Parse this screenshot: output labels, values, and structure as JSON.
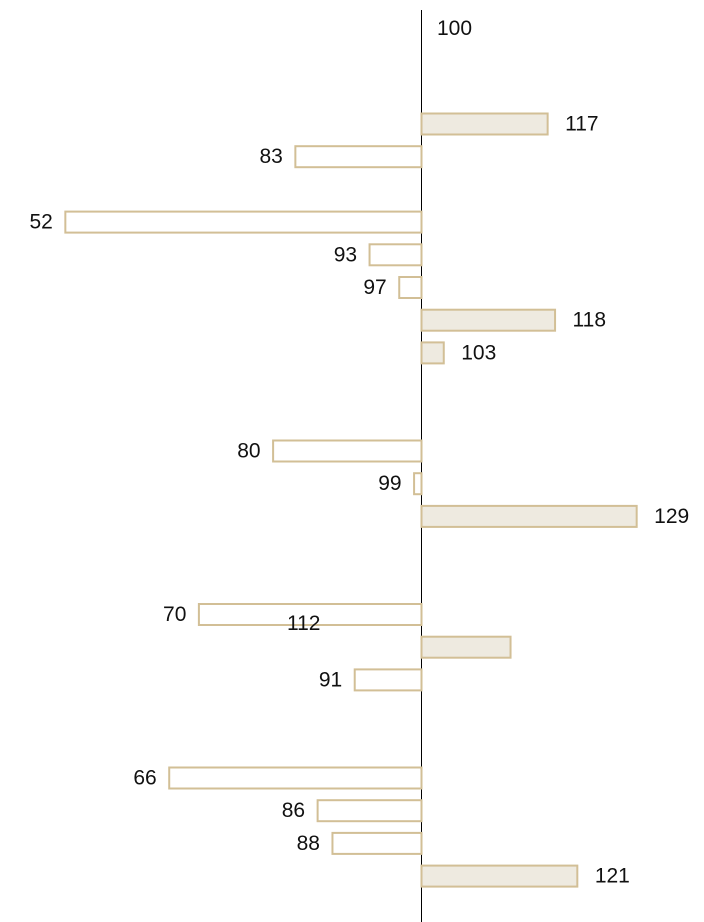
{
  "chart_data": {
    "type": "bar",
    "orientation": "horizontal",
    "baseline": 100,
    "baseline_label": "100",
    "grid": false,
    "legend": "none",
    "bars": [
      {
        "row": 0,
        "value": 117,
        "label": "117"
      },
      {
        "row": 1,
        "value": 83,
        "label": "83"
      },
      {
        "row": 3,
        "value": 52,
        "label": "52"
      },
      {
        "row": 4,
        "value": 93,
        "label": "93"
      },
      {
        "row": 5,
        "value": 97,
        "label": "97"
      },
      {
        "row": 6,
        "value": 118,
        "label": "118"
      },
      {
        "row": 7,
        "value": 103,
        "label": "103"
      },
      {
        "row": 10,
        "value": 80,
        "label": "80"
      },
      {
        "row": 11,
        "value": 99,
        "label": "99"
      },
      {
        "row": 12,
        "value": 129,
        "label": "129"
      },
      {
        "row": 15,
        "value": 70,
        "label": "70"
      },
      {
        "row": 16,
        "value": 112,
        "label": "112"
      },
      {
        "row": 17,
        "value": 91,
        "label": "91"
      },
      {
        "row": 20,
        "value": 66,
        "label": "66"
      },
      {
        "row": 21,
        "value": 86,
        "label": "86"
      },
      {
        "row": 22,
        "value": 88,
        "label": "88"
      },
      {
        "row": 23,
        "value": 121,
        "label": "121"
      }
    ]
  },
  "colors": {
    "bar_stroke": "#d2bf96",
    "above_fill": "#eeeae0",
    "below_fill": "#ffffff",
    "axis": "#000000",
    "text": "#111111"
  }
}
